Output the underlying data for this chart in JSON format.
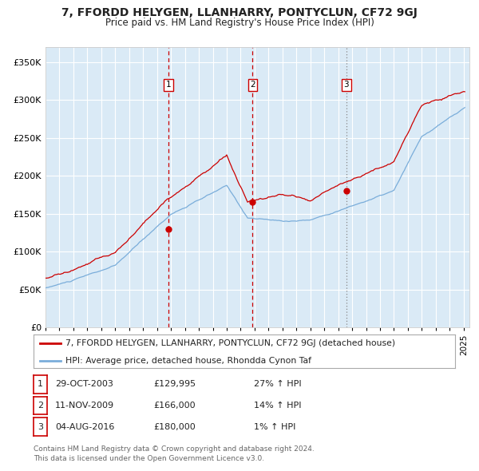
{
  "title": "7, FFORDD HELYGEN, LLANHARRY, PONTYCLUN, CF72 9GJ",
  "subtitle": "Price paid vs. HM Land Registry's House Price Index (HPI)",
  "bg_color": "#daeaf6",
  "red_line_color": "#cc0000",
  "blue_line_color": "#7aadda",
  "sale_dates": [
    "2003-10-29",
    "2009-11-11",
    "2016-08-04"
  ],
  "sale_prices": [
    129995,
    166000,
    180000
  ],
  "sale_labels": [
    "1",
    "2",
    "3"
  ],
  "legend_line1": "7, FFORDD HELYGEN, LLANHARRY, PONTYCLUN, CF72 9GJ (detached house)",
  "legend_line2": "HPI: Average price, detached house, Rhondda Cynon Taf",
  "table_rows": [
    [
      "1",
      "29-OCT-2003",
      "£129,995",
      "27% ↑ HPI"
    ],
    [
      "2",
      "11-NOV-2009",
      "£166,000",
      "14% ↑ HPI"
    ],
    [
      "3",
      "04-AUG-2016",
      "£180,000",
      "1% ↑ HPI"
    ]
  ],
  "footer": "Contains HM Land Registry data © Crown copyright and database right 2024.\nThis data is licensed under the Open Government Licence v3.0.",
  "ylim": [
    0,
    370000
  ],
  "yticks": [
    0,
    50000,
    100000,
    150000,
    200000,
    250000,
    300000,
    350000
  ],
  "ytick_labels": [
    "£0",
    "£50K",
    "£100K",
    "£150K",
    "£200K",
    "£250K",
    "£300K",
    "£350K"
  ]
}
